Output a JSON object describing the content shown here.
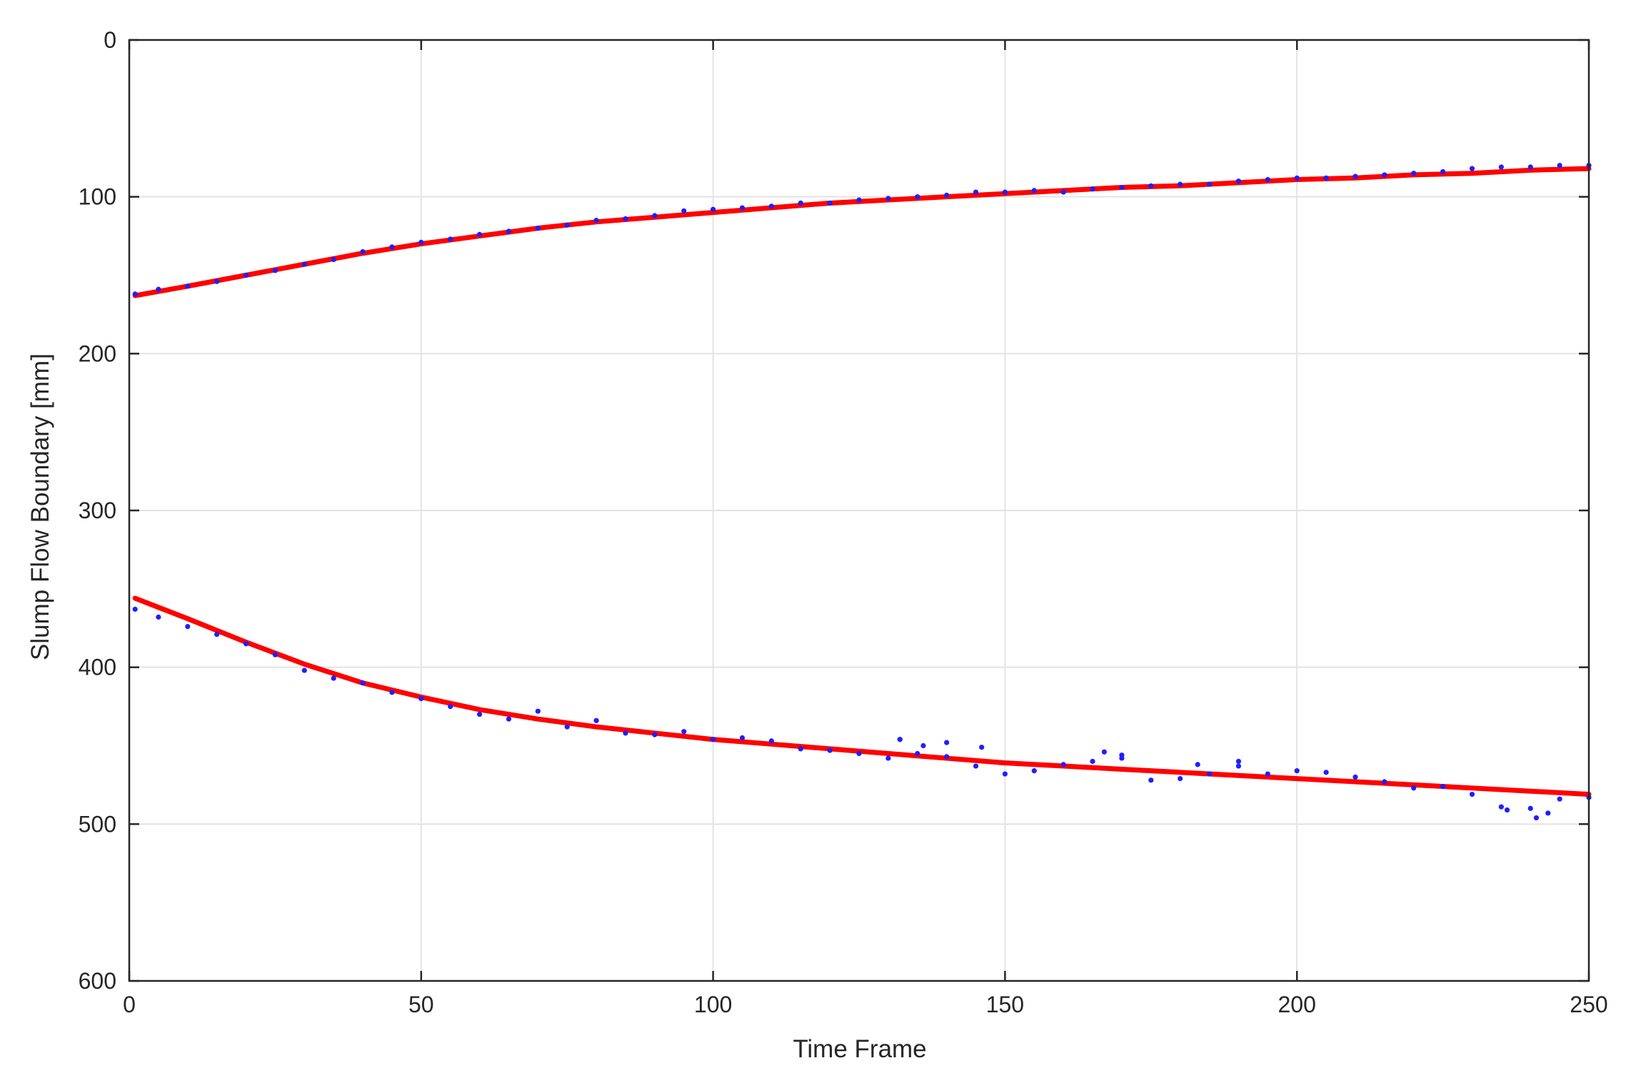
{
  "chart_data": {
    "type": "scatter",
    "title": "",
    "xlabel": "Time Frame",
    "ylabel": "Slump Flow Boundary [mm]",
    "xlim": [
      0,
      250
    ],
    "ylim": [
      0,
      600
    ],
    "y_reversed": true,
    "x_ticks": [
      0,
      50,
      100,
      150,
      200,
      250
    ],
    "y_ticks": [
      0,
      100,
      200,
      300,
      400,
      500,
      600
    ],
    "grid": true,
    "legend": "none",
    "colors": {
      "points": "#1f1fff",
      "fit": "#ff0000",
      "grid": "#e3e3e3",
      "axis": "#262626"
    },
    "series": [
      {
        "role": "measured-upper",
        "style": "points",
        "x": [
          1,
          5,
          10,
          15,
          20,
          25,
          30,
          35,
          40,
          45,
          50,
          55,
          60,
          65,
          70,
          75,
          80,
          85,
          90,
          95,
          100,
          105,
          110,
          115,
          120,
          125,
          130,
          135,
          140,
          145,
          150,
          155,
          160,
          165,
          170,
          175,
          180,
          185,
          190,
          195,
          200,
          205,
          210,
          215,
          220,
          225,
          230,
          235,
          240,
          245,
          250
        ],
        "y": [
          162,
          159,
          157,
          154,
          150,
          147,
          143,
          140,
          135,
          132,
          129,
          127,
          124,
          122,
          120,
          118,
          115,
          114,
          112,
          109,
          108,
          107,
          106,
          104,
          104,
          102,
          101,
          100,
          99,
          97,
          97,
          96,
          97,
          95,
          94,
          93,
          92,
          92,
          90,
          89,
          88,
          88,
          87,
          86,
          85,
          84,
          82,
          81,
          81,
          80,
          80
        ]
      },
      {
        "role": "fit-upper",
        "style": "line",
        "x": [
          1,
          10,
          20,
          30,
          40,
          50,
          60,
          70,
          80,
          90,
          100,
          110,
          120,
          130,
          140,
          150,
          160,
          170,
          180,
          190,
          200,
          210,
          220,
          230,
          240,
          250
        ],
        "y": [
          163,
          157,
          150,
          143,
          136,
          130,
          125,
          120,
          116,
          113,
          110,
          107,
          104,
          102,
          100,
          98,
          96,
          94,
          93,
          91,
          89,
          88,
          86,
          85,
          83,
          82
        ]
      },
      {
        "role": "measured-lower",
        "style": "points",
        "x": [
          1,
          5,
          10,
          15,
          20,
          25,
          30,
          35,
          40,
          45,
          50,
          55,
          60,
          65,
          70,
          75,
          80,
          85,
          90,
          95,
          100,
          105,
          110,
          115,
          120,
          125,
          130,
          132,
          135,
          140,
          145,
          150,
          155,
          160,
          165,
          170,
          175,
          180,
          185,
          190,
          195,
          200,
          205,
          210,
          215,
          220,
          225,
          230,
          235,
          240,
          245,
          250
        ],
        "y": [
          363,
          368,
          374,
          379,
          385,
          392,
          402,
          407,
          410,
          416,
          420,
          425,
          430,
          433,
          428,
          438,
          434,
          442,
          443,
          441,
          446,
          445,
          447,
          452,
          453,
          455,
          458,
          446,
          455,
          457,
          463,
          468,
          466,
          462,
          460,
          458,
          472,
          471,
          468,
          463,
          468,
          466,
          467,
          470,
          473,
          477,
          476,
          481,
          489,
          490,
          484,
          483
        ],
        "extra_x": [
          132,
          136,
          140,
          146,
          167,
          170,
          183,
          190,
          236,
          241,
          243
        ],
        "extra_y": [
          446,
          450,
          448,
          451,
          454,
          456,
          462,
          460,
          491,
          496,
          493
        ]
      },
      {
        "role": "fit-lower",
        "style": "line",
        "x": [
          1,
          10,
          20,
          30,
          40,
          50,
          60,
          70,
          80,
          90,
          100,
          110,
          120,
          130,
          140,
          150,
          160,
          170,
          180,
          190,
          200,
          210,
          220,
          230,
          240,
          250
        ],
        "y": [
          356,
          369,
          384,
          398,
          410,
          419,
          427,
          433,
          438,
          442,
          446,
          449,
          452,
          455,
          458,
          461,
          463,
          465,
          467,
          469,
          471,
          473,
          475,
          477,
          479,
          481
        ]
      }
    ]
  }
}
